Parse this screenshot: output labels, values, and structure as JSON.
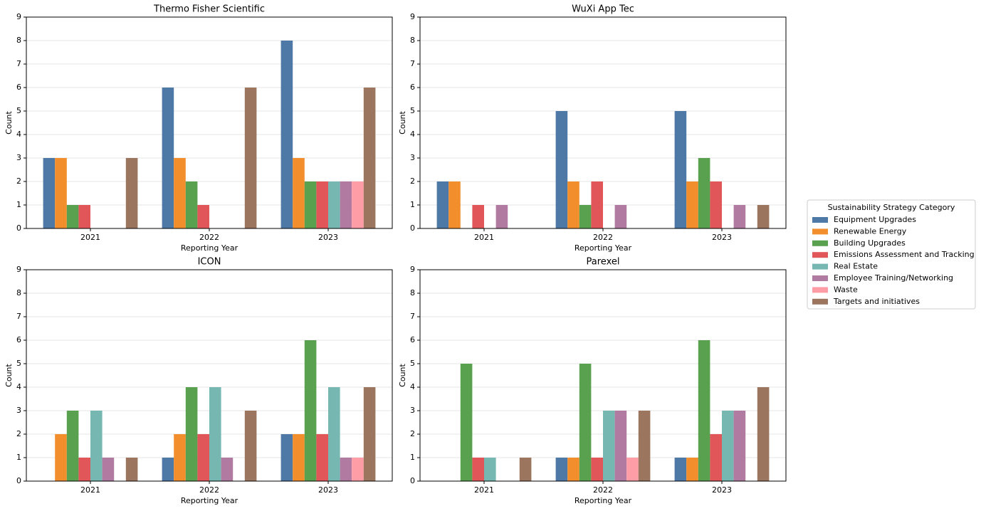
{
  "chart_data": [
    {
      "type": "bar",
      "title": "Thermo Fisher Scientific",
      "x_label": "Reporting Year",
      "y_label": "Count",
      "legend_title": "Sustainability Strategy Category",
      "categories": [
        "2021",
        "2022",
        "2023"
      ],
      "ylim": [
        0,
        9
      ],
      "yticks": [
        0,
        1,
        2,
        3,
        4,
        5,
        6,
        7,
        8,
        9
      ],
      "grid": true,
      "series": [
        {
          "name": "Equipment Upgrades",
          "color": "#4e79a7",
          "values": [
            3,
            6,
            8
          ]
        },
        {
          "name": "Renewable Energy",
          "color": "#f28e2b",
          "values": [
            3,
            3,
            3
          ]
        },
        {
          "name": "Building Upgrades",
          "color": "#59a14f",
          "values": [
            1,
            2,
            2
          ]
        },
        {
          "name": "Emissions Assessment and Tracking",
          "color": "#e15759",
          "values": [
            1,
            1,
            2
          ]
        },
        {
          "name": "Real Estate",
          "color": "#76b7b2",
          "values": [
            0,
            0,
            2
          ]
        },
        {
          "name": "Employee Training/Networking",
          "color": "#b07aa1",
          "values": [
            0,
            0,
            2
          ]
        },
        {
          "name": "Waste",
          "color": "#ff9da7",
          "values": [
            0,
            0,
            2
          ]
        },
        {
          "name": "Targets and initiatives",
          "color": "#9c755f",
          "values": [
            3,
            6,
            6
          ]
        }
      ]
    },
    {
      "type": "bar",
      "title": "WuXi App Tec",
      "x_label": "Reporting Year",
      "y_label": "Count",
      "categories": [
        "2021",
        "2022",
        "2023"
      ],
      "ylim": [
        0,
        9
      ],
      "yticks": [
        0,
        1,
        2,
        3,
        4,
        5,
        6,
        7,
        8,
        9
      ],
      "grid": true,
      "series": [
        {
          "name": "Equipment Upgrades",
          "color": "#4e79a7",
          "values": [
            2,
            5,
            5
          ]
        },
        {
          "name": "Renewable Energy",
          "color": "#f28e2b",
          "values": [
            2,
            2,
            2
          ]
        },
        {
          "name": "Building Upgrades",
          "color": "#59a14f",
          "values": [
            0,
            1,
            3
          ]
        },
        {
          "name": "Emissions Assessment and Tracking",
          "color": "#e15759",
          "values": [
            1,
            2,
            2
          ]
        },
        {
          "name": "Real Estate",
          "color": "#76b7b2",
          "values": [
            0,
            0,
            0
          ]
        },
        {
          "name": "Employee Training/Networking",
          "color": "#b07aa1",
          "values": [
            1,
            1,
            1
          ]
        },
        {
          "name": "Waste",
          "color": "#ff9da7",
          "values": [
            0,
            0,
            0
          ]
        },
        {
          "name": "Targets and initiatives",
          "color": "#9c755f",
          "values": [
            0,
            0,
            1
          ]
        }
      ]
    },
    {
      "type": "bar",
      "title": "ICON",
      "x_label": "Reporting Year",
      "y_label": "Count",
      "categories": [
        "2021",
        "2022",
        "2023"
      ],
      "ylim": [
        0,
        9
      ],
      "yticks": [
        0,
        1,
        2,
        3,
        4,
        5,
        6,
        7,
        8,
        9
      ],
      "grid": true,
      "series": [
        {
          "name": "Equipment Upgrades",
          "color": "#4e79a7",
          "values": [
            0,
            1,
            2
          ]
        },
        {
          "name": "Renewable Energy",
          "color": "#f28e2b",
          "values": [
            2,
            2,
            2
          ]
        },
        {
          "name": "Building Upgrades",
          "color": "#59a14f",
          "values": [
            3,
            4,
            6
          ]
        },
        {
          "name": "Emissions Assessment and Tracking",
          "color": "#e15759",
          "values": [
            1,
            2,
            2
          ]
        },
        {
          "name": "Real Estate",
          "color": "#76b7b2",
          "values": [
            3,
            4,
            4
          ]
        },
        {
          "name": "Employee Training/Networking",
          "color": "#b07aa1",
          "values": [
            1,
            1,
            1
          ]
        },
        {
          "name": "Waste",
          "color": "#ff9da7",
          "values": [
            0,
            0,
            1
          ]
        },
        {
          "name": "Targets and initiatives",
          "color": "#9c755f",
          "values": [
            1,
            3,
            4
          ]
        }
      ]
    },
    {
      "type": "bar",
      "title": "Parexel",
      "x_label": "Reporting Year",
      "y_label": "Count",
      "categories": [
        "2021",
        "2022",
        "2023"
      ],
      "ylim": [
        0,
        9
      ],
      "yticks": [
        0,
        1,
        2,
        3,
        4,
        5,
        6,
        7,
        8,
        9
      ],
      "grid": true,
      "series": [
        {
          "name": "Equipment Upgrades",
          "color": "#4e79a7",
          "values": [
            0,
            1,
            1
          ]
        },
        {
          "name": "Renewable Energy",
          "color": "#f28e2b",
          "values": [
            0,
            1,
            1
          ]
        },
        {
          "name": "Building Upgrades",
          "color": "#59a14f",
          "values": [
            5,
            5,
            6
          ]
        },
        {
          "name": "Emissions Assessment and Tracking",
          "color": "#e15759",
          "values": [
            1,
            1,
            2
          ]
        },
        {
          "name": "Real Estate",
          "color": "#76b7b2",
          "values": [
            1,
            3,
            3
          ]
        },
        {
          "name": "Employee Training/Networking",
          "color": "#b07aa1",
          "values": [
            0,
            3,
            3
          ]
        },
        {
          "name": "Waste",
          "color": "#ff9da7",
          "values": [
            0,
            1,
            0
          ]
        },
        {
          "name": "Targets and initiatives",
          "color": "#9c755f",
          "values": [
            1,
            3,
            4
          ]
        }
      ]
    }
  ]
}
